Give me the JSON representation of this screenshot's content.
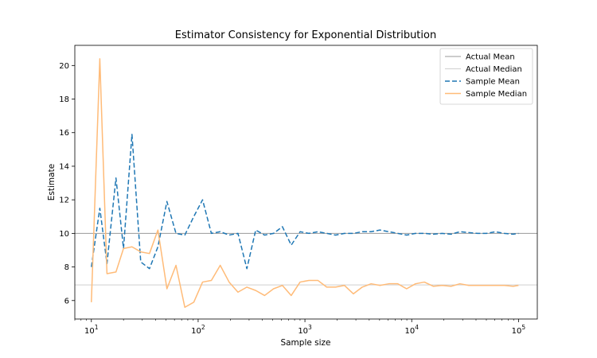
{
  "chart_data": {
    "type": "line",
    "title": "Estimator Consistency for Exponential Distribution",
    "xlabel": "Sample size",
    "ylabel": "Estimate",
    "xscale": "log",
    "xlim": [
      7,
      150000
    ],
    "ylim": [
      4.9,
      21.2
    ],
    "xticks": [
      {
        "value": 10,
        "base": "10",
        "exp": "1"
      },
      {
        "value": 100,
        "base": "10",
        "exp": "2"
      },
      {
        "value": 1000,
        "base": "10",
        "exp": "3"
      },
      {
        "value": 10000,
        "base": "10",
        "exp": "4"
      },
      {
        "value": 100000,
        "base": "10",
        "exp": "5"
      }
    ],
    "yticks": [
      {
        "value": 6,
        "label": "6"
      },
      {
        "value": 8,
        "label": "8"
      },
      {
        "value": 10,
        "label": "10"
      },
      {
        "value": 12,
        "label": "12"
      },
      {
        "value": 14,
        "label": "14"
      },
      {
        "value": 16,
        "label": "16"
      },
      {
        "value": 18,
        "label": "18"
      },
      {
        "value": 20,
        "label": "20"
      }
    ],
    "legend_position": "top-right",
    "reference_lines": [
      {
        "name": "Actual Mean",
        "value": 10,
        "color": "#9a9a9a"
      },
      {
        "name": "Actual Median",
        "value": 6.93,
        "color": "#cfcfcf"
      }
    ],
    "x": [
      10,
      12,
      14,
      17,
      20,
      24,
      29,
      35,
      42,
      51,
      62,
      75,
      91,
      110,
      133,
      161,
      195,
      236,
      286,
      346,
      419,
      508,
      615,
      744,
      901,
      1090,
      1321,
      1599,
      1937,
      2346,
      2841,
      3440,
      4166,
      5045,
      6110,
      7400,
      8962,
      10853,
      13143,
      15916,
      19275,
      23343,
      28269,
      34235,
      41460,
      50209,
      60804,
      73635,
      89174,
      100000
    ],
    "series": [
      {
        "name": "Sample Mean",
        "color": "#1f77b4",
        "dash": "6,3",
        "values": [
          8.0,
          11.5,
          8.2,
          13.3,
          9.1,
          15.9,
          8.3,
          7.9,
          9.2,
          11.9,
          10.0,
          9.9,
          11.0,
          12.0,
          10.0,
          10.1,
          9.9,
          10.0,
          7.9,
          10.2,
          9.9,
          10.0,
          10.4,
          9.3,
          10.1,
          10.0,
          10.1,
          10.0,
          9.9,
          10.0,
          10.0,
          10.1,
          10.1,
          10.2,
          10.1,
          10.0,
          9.9,
          10.0,
          10.0,
          9.95,
          10.0,
          9.95,
          10.1,
          10.05,
          10.0,
          10.0,
          10.1,
          10.0,
          9.95,
          10.0
        ]
      },
      {
        "name": "Sample Median",
        "color": "#ffbb78",
        "dash": "",
        "values": [
          5.9,
          20.4,
          7.6,
          7.7,
          9.1,
          9.2,
          8.9,
          8.8,
          10.2,
          6.7,
          8.1,
          5.6,
          5.9,
          7.1,
          7.2,
          8.1,
          7.1,
          6.5,
          6.8,
          6.6,
          6.3,
          6.7,
          6.9,
          6.3,
          7.1,
          7.2,
          7.2,
          6.8,
          6.8,
          6.9,
          6.4,
          6.8,
          7.0,
          6.9,
          7.0,
          7.0,
          6.7,
          7.0,
          7.1,
          6.85,
          6.9,
          6.85,
          7.0,
          6.9,
          6.9,
          6.9,
          6.9,
          6.9,
          6.85,
          6.9
        ]
      }
    ]
  }
}
